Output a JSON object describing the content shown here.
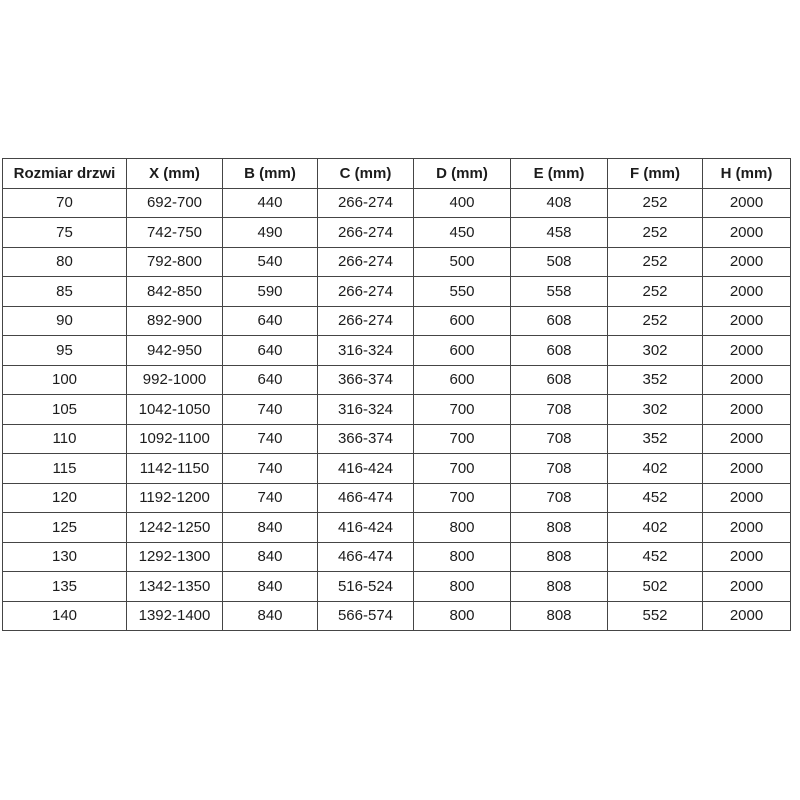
{
  "table": {
    "headers": [
      "Rozmiar drzwi",
      "X (mm)",
      "B (mm)",
      "C (mm)",
      "D (mm)",
      "E (mm)",
      "F (mm)",
      "H (mm)"
    ],
    "rows": [
      [
        "70",
        "692-700",
        "440",
        "266-274",
        "400",
        "408",
        "252",
        "2000"
      ],
      [
        "75",
        "742-750",
        "490",
        "266-274",
        "450",
        "458",
        "252",
        "2000"
      ],
      [
        "80",
        "792-800",
        "540",
        "266-274",
        "500",
        "508",
        "252",
        "2000"
      ],
      [
        "85",
        "842-850",
        "590",
        "266-274",
        "550",
        "558",
        "252",
        "2000"
      ],
      [
        "90",
        "892-900",
        "640",
        "266-274",
        "600",
        "608",
        "252",
        "2000"
      ],
      [
        "95",
        "942-950",
        "640",
        "316-324",
        "600",
        "608",
        "302",
        "2000"
      ],
      [
        "100",
        "992-1000",
        "640",
        "366-374",
        "600",
        "608",
        "352",
        "2000"
      ],
      [
        "105",
        "1042-1050",
        "740",
        "316-324",
        "700",
        "708",
        "302",
        "2000"
      ],
      [
        "110",
        "1092-1100",
        "740",
        "366-374",
        "700",
        "708",
        "352",
        "2000"
      ],
      [
        "115",
        "1142-1150",
        "740",
        "416-424",
        "700",
        "708",
        "402",
        "2000"
      ],
      [
        "120",
        "1192-1200",
        "740",
        "466-474",
        "700",
        "708",
        "452",
        "2000"
      ],
      [
        "125",
        "1242-1250",
        "840",
        "416-424",
        "800",
        "808",
        "402",
        "2000"
      ],
      [
        "130",
        "1292-1300",
        "840",
        "466-474",
        "800",
        "808",
        "452",
        "2000"
      ],
      [
        "135",
        "1342-1350",
        "840",
        "516-524",
        "800",
        "808",
        "502",
        "2000"
      ],
      [
        "140",
        "1392-1400",
        "840",
        "566-574",
        "800",
        "808",
        "552",
        "2000"
      ]
    ]
  },
  "colors": {
    "background": "#ffffff",
    "border": "#454545",
    "text": "#1c1c1c"
  },
  "chart_data": {
    "type": "table",
    "title": "",
    "columns": [
      "Rozmiar drzwi",
      "X (mm)",
      "B (mm)",
      "C (mm)",
      "D (mm)",
      "E (mm)",
      "F (mm)",
      "H (mm)"
    ],
    "rows": [
      [
        "70",
        "692-700",
        "440",
        "266-274",
        "400",
        "408",
        "252",
        "2000"
      ],
      [
        "75",
        "742-750",
        "490",
        "266-274",
        "450",
        "458",
        "252",
        "2000"
      ],
      [
        "80",
        "792-800",
        "540",
        "266-274",
        "500",
        "508",
        "252",
        "2000"
      ],
      [
        "85",
        "842-850",
        "590",
        "266-274",
        "550",
        "558",
        "252",
        "2000"
      ],
      [
        "90",
        "892-900",
        "640",
        "266-274",
        "600",
        "608",
        "252",
        "2000"
      ],
      [
        "95",
        "942-950",
        "640",
        "316-324",
        "600",
        "608",
        "302",
        "2000"
      ],
      [
        "100",
        "992-1000",
        "640",
        "366-374",
        "600",
        "608",
        "352",
        "2000"
      ],
      [
        "105",
        "1042-1050",
        "740",
        "316-324",
        "700",
        "708",
        "302",
        "2000"
      ],
      [
        "110",
        "1092-1100",
        "740",
        "366-374",
        "700",
        "708",
        "352",
        "2000"
      ],
      [
        "115",
        "1142-1150",
        "740",
        "416-424",
        "700",
        "708",
        "402",
        "2000"
      ],
      [
        "120",
        "1192-1200",
        "740",
        "466-474",
        "700",
        "708",
        "452",
        "2000"
      ],
      [
        "125",
        "1242-1250",
        "840",
        "416-424",
        "800",
        "808",
        "402",
        "2000"
      ],
      [
        "130",
        "1292-1300",
        "840",
        "466-474",
        "800",
        "808",
        "452",
        "2000"
      ],
      [
        "135",
        "1342-1350",
        "840",
        "516-524",
        "800",
        "808",
        "502",
        "2000"
      ],
      [
        "140",
        "1392-1400",
        "840",
        "566-574",
        "800",
        "808",
        "552",
        "2000"
      ]
    ]
  }
}
